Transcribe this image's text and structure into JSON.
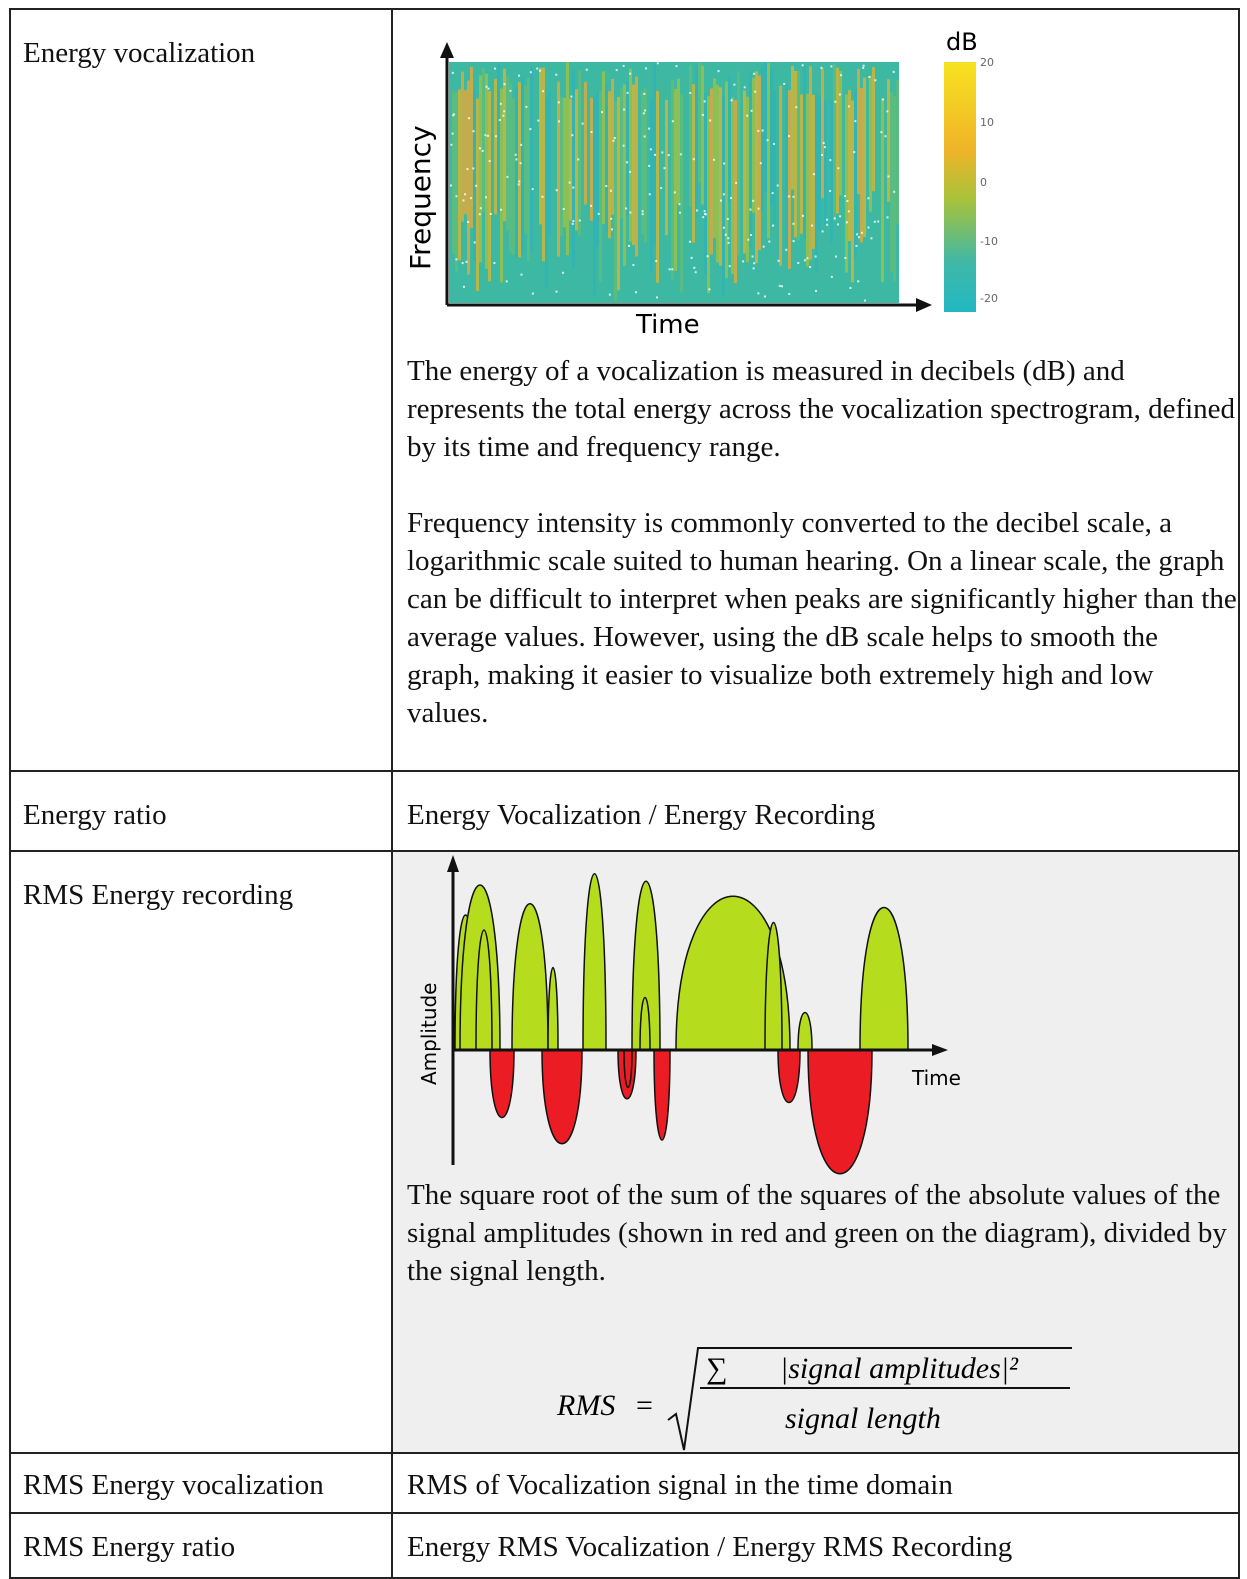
{
  "table": {
    "rows": [
      {
        "label": "Energy vocalization",
        "figure": {
          "colorbar_title": "dB",
          "colorbar_ticks": [
            "20",
            "10",
            "0",
            "-10",
            "-20"
          ],
          "y_axis": "Frequency",
          "x_axis": "Time"
        },
        "paragraphs": [
          "The energy of a vocalization is measured in decibels (dB) and represents the total energy across the vocalization spectrogram, defined by its time and frequency range.",
          "Frequency intensity is commonly converted to the decibel scale, a logarithmic scale suited to human hearing. On a linear scale, the graph can be difficult to interpret when peaks are significantly higher than the average values. However, using the dB scale helps to smooth the graph, making it easier to visualize both extremely high and low values."
        ]
      },
      {
        "label": "Energy ratio",
        "text": "Energy Vocalization / Energy Recording"
      },
      {
        "label": "RMS Energy recording",
        "figure": {
          "y_axis": "Amplitude",
          "x_axis": "Time"
        },
        "paragraphs": [
          "The square root of the sum of the squares of the absolute values of the signal amplitudes (shown in red and green on the diagram), divided by the signal length."
        ],
        "formula": {
          "lhs": "RMS",
          "equals": "=",
          "sum": "∑",
          "numerator": "|signal amplitudes|²",
          "denominator": "signal length"
        }
      },
      {
        "label": "RMS Energy vocalization",
        "text": "RMS of Vocalization signal in the time domain"
      },
      {
        "label": "RMS Energy ratio",
        "text": "Energy RMS Vocalization / Energy RMS Recording"
      }
    ]
  }
}
